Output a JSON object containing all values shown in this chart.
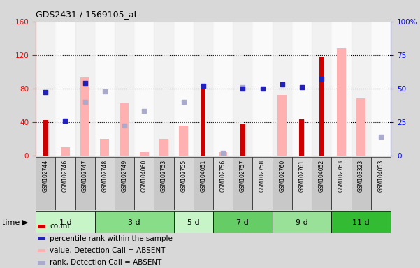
{
  "title": "GDS2431 / 1569105_at",
  "samples": [
    "GSM102744",
    "GSM102746",
    "GSM102747",
    "GSM102748",
    "GSM102749",
    "GSM104060",
    "GSM102753",
    "GSM102755",
    "GSM104051",
    "GSM102756",
    "GSM102757",
    "GSM102758",
    "GSM102760",
    "GSM102761",
    "GSM104052",
    "GSM102763",
    "GSM103323",
    "GSM104053"
  ],
  "groups": [
    {
      "label": "1 d",
      "indices": [
        0,
        1,
        2
      ],
      "color": "#c8f5c8"
    },
    {
      "label": "3 d",
      "indices": [
        3,
        4,
        5,
        6
      ],
      "color": "#88dd88"
    },
    {
      "label": "5 d",
      "indices": [
        7,
        8
      ],
      "color": "#c8f5c8"
    },
    {
      "label": "7 d",
      "indices": [
        9,
        10,
        11
      ],
      "color": "#66cc66"
    },
    {
      "label": "9 d",
      "indices": [
        12,
        13,
        14
      ],
      "color": "#99e099"
    },
    {
      "label": "11 d",
      "indices": [
        15,
        16,
        17
      ],
      "color": "#33bb33"
    }
  ],
  "count": [
    42,
    null,
    null,
    null,
    null,
    null,
    null,
    null,
    80,
    null,
    38,
    null,
    null,
    43,
    117,
    null,
    null,
    null
  ],
  "percentile_rank": [
    47,
    26,
    54,
    null,
    null,
    null,
    null,
    null,
    52,
    null,
    50,
    50,
    53,
    51,
    57,
    null,
    null,
    null
  ],
  "value_absent": [
    null,
    10,
    93,
    20,
    62,
    4,
    20,
    36,
    null,
    4,
    null,
    null,
    72,
    null,
    null,
    128,
    68,
    null
  ],
  "rank_absent": [
    null,
    null,
    40,
    48,
    22,
    33,
    null,
    40,
    null,
    2,
    51,
    null,
    null,
    null,
    null,
    null,
    null,
    14
  ],
  "left_ylim": [
    0,
    160
  ],
  "right_ylim": [
    0,
    100
  ],
  "left_yticks": [
    0,
    40,
    80,
    120,
    160
  ],
  "right_yticks": [
    0,
    25,
    50,
    75,
    100
  ],
  "right_yticklabels": [
    "0",
    "25",
    "50",
    "75",
    "100%"
  ],
  "bar_color_count": "#cc0000",
  "bar_color_absent": "#ffb0b0",
  "scatter_color_rank": "#2222bb",
  "scatter_color_rank_absent": "#aaaacc",
  "background_color": "#d8d8d8",
  "plot_bg": "#ffffff",
  "xlabel_bg": "#cccccc",
  "grid_color": "black",
  "grid_style": "dotted"
}
